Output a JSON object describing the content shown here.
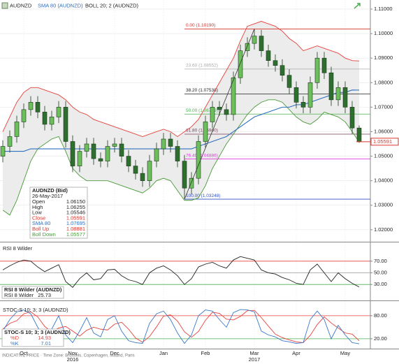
{
  "chart_data": [
    {
      "type": "candlestick",
      "title": "AUDNZD",
      "categories": [
        null,
        null,
        null,
        "Oct",
        null,
        null,
        null,
        null,
        null,
        null,
        "Nov",
        null,
        null,
        null,
        null,
        null,
        "Dec",
        null,
        null,
        null,
        null,
        null,
        null,
        "Jan",
        null,
        null,
        null,
        null,
        null,
        "Feb",
        null,
        null,
        null,
        null,
        null,
        null,
        "Mar",
        null,
        null,
        null,
        null,
        null,
        "Apr",
        null,
        null,
        null,
        null,
        null,
        null,
        "May",
        null,
        null
      ],
      "year_labels": [
        null,
        null,
        null,
        null,
        null,
        null,
        null,
        null,
        null,
        null,
        "2016",
        null,
        null,
        null,
        null,
        null,
        null,
        null,
        null,
        null,
        null,
        null,
        null,
        null,
        null,
        null,
        null,
        null,
        null,
        null,
        null,
        null,
        null,
        null,
        null,
        null,
        "2017",
        null,
        null,
        null,
        null,
        null,
        null,
        null,
        null,
        null,
        null,
        null,
        null,
        null,
        null,
        null
      ],
      "open": [
        1.05,
        1.054,
        1.058,
        1.064,
        1.069,
        1.072,
        1.068,
        1.063,
        1.066,
        1.07,
        1.056,
        1.046,
        1.052,
        1.055,
        1.049,
        1.048,
        1.054,
        1.055,
        1.05,
        1.046,
        1.043,
        1.04,
        1.048,
        1.053,
        1.057,
        1.054,
        1.048,
        1.037,
        1.041,
        1.056,
        1.064,
        1.07,
        1.069,
        1.067,
        1.082,
        1.093,
        1.096,
        1.099,
        1.093,
        1.089,
        1.087,
        1.083,
        1.078,
        1.072,
        1.07,
        1.08,
        1.09,
        1.084,
        1.073,
        1.078,
        1.07,
        1.0615
      ],
      "high": [
        1.0565,
        1.0605,
        1.0665,
        1.0715,
        1.0745,
        1.0745,
        1.0705,
        1.0685,
        1.0725,
        1.0725,
        1.0585,
        1.0545,
        1.0575,
        1.0575,
        1.0515,
        1.0565,
        1.0575,
        1.0575,
        1.0525,
        1.0485,
        1.0455,
        1.0505,
        1.0555,
        1.0595,
        1.0595,
        1.0565,
        1.0505,
        1.0435,
        1.0585,
        1.0665,
        1.0725,
        1.0725,
        1.0715,
        1.0845,
        1.0955,
        1.0985,
        1.1019,
        1.1015,
        1.0955,
        1.0915,
        1.0895,
        1.0855,
        1.0805,
        1.0745,
        1.0825,
        1.0925,
        1.0925,
        1.0865,
        1.0805,
        1.0805,
        1.0725,
        1.06255
      ],
      "low": [
        1.0475,
        1.0515,
        1.0555,
        1.0615,
        1.0665,
        1.0655,
        1.0605,
        1.0605,
        1.0635,
        1.0535,
        1.0435,
        1.0435,
        1.0495,
        1.0465,
        1.0455,
        1.0455,
        1.0515,
        1.0475,
        1.0435,
        1.0405,
        1.0375,
        1.0375,
        1.0455,
        1.0505,
        1.0515,
        1.0455,
        1.0325,
        1.0345,
        1.0385,
        1.0535,
        1.0615,
        1.0665,
        1.0645,
        1.0645,
        1.0795,
        1.0905,
        1.0935,
        1.0905,
        1.0865,
        1.0845,
        1.0805,
        1.0755,
        1.0695,
        1.0675,
        1.0675,
        1.0775,
        1.0815,
        1.0705,
        1.0705,
        1.0675,
        1.059,
        1.05546
      ],
      "close": [
        1.054,
        1.058,
        1.064,
        1.069,
        1.072,
        1.068,
        1.063,
        1.066,
        1.07,
        1.056,
        1.046,
        1.052,
        1.055,
        1.049,
        1.048,
        1.054,
        1.055,
        1.05,
        1.046,
        1.043,
        1.04,
        1.048,
        1.053,
        1.057,
        1.054,
        1.048,
        1.037,
        1.041,
        1.056,
        1.064,
        1.07,
        1.069,
        1.067,
        1.082,
        1.093,
        1.096,
        1.099,
        1.093,
        1.089,
        1.087,
        1.083,
        1.078,
        1.072,
        1.07,
        1.08,
        1.09,
        1.084,
        1.073,
        1.078,
        1.07,
        1.0615,
        1.05591
      ],
      "up_color": "#6dbf5b",
      "down_color": "#2e6e2e",
      "ylim": [
        1.0154,
        1.1137
      ],
      "yticks": [
        {
          "value": 1.02,
          "label": "1.02000"
        },
        {
          "value": 1.03,
          "label": "1.03000"
        },
        {
          "value": 1.04,
          "label": "1.04000"
        },
        {
          "value": 1.05,
          "label": "1.05000"
        },
        {
          "value": 1.06,
          "label": "1.06000"
        },
        {
          "value": 1.07,
          "label": "1.07000"
        },
        {
          "value": 1.08,
          "label": "1.08000"
        },
        {
          "value": 1.09,
          "label": "1.09000"
        },
        {
          "value": 1.1,
          "label": "1.10000"
        },
        {
          "value": 1.11,
          "label": "1.11000"
        }
      ],
      "grid": true,
      "sma": {
        "name": "SMA 80 (AUDNZD)",
        "color": "#2f6fc0",
        "values": [
          1.052,
          1.052,
          1.052,
          1.052,
          1.053,
          1.053,
          1.053,
          1.053,
          1.053,
          1.053,
          1.053,
          1.053,
          1.053,
          1.053,
          1.053,
          1.053,
          1.053,
          1.053,
          1.053,
          1.053,
          1.053,
          1.053,
          1.053,
          1.053,
          1.053,
          1.053,
          1.053,
          1.053,
          1.054,
          1.055,
          1.056,
          1.057,
          1.058,
          1.06,
          1.062,
          1.064,
          1.066,
          1.067,
          1.068,
          1.069,
          1.07,
          1.07,
          1.071,
          1.071,
          1.072,
          1.073,
          1.074,
          1.075,
          1.076,
          1.076,
          1.077,
          1.07695
        ]
      },
      "bollinger": {
        "name": "BOLL 20; 2 (AUDNZD)",
        "fill": "#ececec",
        "upper": {
          "color": "#e8413c",
          "values": [
            1.06,
            1.066,
            1.072,
            1.076,
            1.078,
            1.078,
            1.077,
            1.076,
            1.075,
            1.073,
            1.07,
            1.068,
            1.067,
            1.065,
            1.064,
            1.063,
            1.062,
            1.061,
            1.06,
            1.059,
            1.058,
            1.059,
            1.06,
            1.061,
            1.06,
            1.058,
            1.06,
            1.062,
            1.065,
            1.07,
            1.075,
            1.08,
            1.085,
            1.09,
            1.097,
            1.103,
            1.104,
            1.105,
            1.104,
            1.103,
            1.101,
            1.098,
            1.096,
            1.093,
            1.094,
            1.095,
            1.094,
            1.093,
            1.092,
            1.09,
            1.089,
            1.08881
          ]
        },
        "lower": {
          "color": "#4a9a3a",
          "values": [
            1.028,
            1.026,
            1.032,
            1.04,
            1.048,
            1.053,
            1.055,
            1.057,
            1.058,
            1.052,
            1.045,
            1.042,
            1.04,
            1.04,
            1.04,
            1.04,
            1.039,
            1.038,
            1.037,
            1.036,
            1.035,
            1.037,
            1.04,
            1.041,
            1.04,
            1.036,
            1.032,
            1.032,
            1.033,
            1.038,
            1.045,
            1.05,
            1.055,
            1.059,
            1.063,
            1.067,
            1.07,
            1.072,
            1.073,
            1.073,
            1.072,
            1.069,
            1.066,
            1.064,
            1.063,
            1.065,
            1.068,
            1.067,
            1.066,
            1.064,
            1.06,
            1.05577
          ]
        }
      },
      "fib_levels": [
        {
          "label": "0.00 (1.10190)",
          "value": 1.1019,
          "color": "#d9342b"
        },
        {
          "label": "23.60 (1.08552)",
          "value": 1.08552,
          "color": "#aaaaaa"
        },
        {
          "label": "38.20 (1.07538)",
          "value": 1.07538,
          "color": "#222222"
        },
        {
          "label": "50.00 (1.06719)",
          "value": 1.06719,
          "color": "#4caf50"
        },
        {
          "label": "61.80 (1.05900)",
          "value": 1.059,
          "color": "#7a3b5a"
        },
        {
          "label": "76.40 (1.04886)",
          "value": 1.04886,
          "color": "#e040e0"
        },
        {
          "label": "100.00 (1.03248)",
          "value": 1.03248,
          "color": "#3050c8"
        }
      ],
      "last_label": "1.05591",
      "info_box": {
        "title": "AUDNZD (Bid)",
        "date": "26-May-2017",
        "rows": [
          {
            "label": "Open",
            "value": "1.06150",
            "color": "#222222"
          },
          {
            "label": "High",
            "value": "1.06255",
            "color": "#222222"
          },
          {
            "label": "Low",
            "value": "1.05546",
            "color": "#222222"
          },
          {
            "label": "Close",
            "value": "1.05591",
            "color": "#d9342b"
          },
          {
            "label": "SMA 80",
            "value": "1.07695",
            "color": "#2f6fc0"
          },
          {
            "label": "Boll Up",
            "value": "1.08881",
            "color": "#d9342b"
          },
          {
            "label": "Boll Down",
            "value": "1.05577",
            "color": "#4a9a3a"
          }
        ]
      }
    },
    {
      "type": "line",
      "title": "RSI 8 Wilder",
      "box_title": "RSI 8 Wilder (AUDNZD)",
      "series": [
        {
          "name": "RSI 8 Wilder",
          "color": "#222222",
          "values": [
            55,
            62,
            68,
            72,
            70,
            60,
            52,
            58,
            64,
            35,
            25,
            40,
            50,
            38,
            40,
            55,
            56,
            45,
            38,
            35,
            30,
            50,
            58,
            62,
            55,
            45,
            30,
            40,
            60,
            65,
            68,
            62,
            58,
            72,
            78,
            75,
            72,
            55,
            50,
            48,
            42,
            38,
            32,
            30,
            55,
            65,
            50,
            35,
            50,
            40,
            32,
            25.73
          ]
        }
      ],
      "ylim": [
        5,
        101
      ],
      "yticks": [
        {
          "value": 30,
          "label": "30.00"
        },
        {
          "value": 50,
          "label": "50.00"
        },
        {
          "value": 70,
          "label": "70.00"
        }
      ],
      "tick_colors": [
        "#4caf50",
        "#999999",
        "#e8413c"
      ]
    },
    {
      "type": "line",
      "title": "STOC-S 10; 3; 3 (AUDNZD)",
      "series": [
        {
          "name": "%D",
          "color": "#e8413c",
          "values": [
            45,
            60,
            67,
            85,
            90,
            77,
            52,
            38,
            48,
            52,
            40,
            27,
            42,
            50,
            45,
            43,
            58,
            63,
            45,
            22,
            11,
            26,
            51,
            79,
            82,
            66,
            38,
            24,
            39,
            68,
            89,
            86,
            71,
            69,
            78,
            93,
            94,
            75,
            53,
            32,
            23,
            17,
            12,
            10,
            29,
            57,
            77,
            61,
            48,
            35,
            32,
            14.93
          ]
        },
        {
          "name": "%K",
          "color": "#3a78c8",
          "values": [
            40,
            70,
            90,
            95,
            85,
            50,
            20,
            45,
            80,
            30,
            10,
            40,
            75,
            35,
            25,
            70,
            80,
            40,
            15,
            10,
            8,
            60,
            85,
            92,
            70,
            35,
            8,
            30,
            80,
            95,
            92,
            70,
            50,
            88,
            96,
            95,
            90,
            40,
            30,
            25,
            15,
            12,
            8,
            10,
            70,
            92,
            70,
            20,
            55,
            30,
            10,
            7.01
          ]
        }
      ],
      "ylim": [
        -2,
        107
      ],
      "yticks": [
        {
          "value": 20,
          "label": "20.00"
        },
        {
          "value": 80,
          "label": "80.00"
        }
      ],
      "tick_colors": [
        "#4caf50",
        "#e8413c"
      ]
    }
  ],
  "footer": "INDICATIVE PRICE · Time Zone: Brussels, Copenhagen, Madrid, Paris"
}
